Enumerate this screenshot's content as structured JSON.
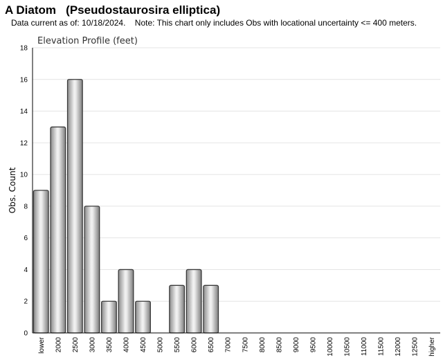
{
  "header": {
    "title": "A Diatom   (Pseudostaurosira elliptica)",
    "note": "Data current as of: 10/18/2024.    Note: This chart only includes Obs with locational uncertainty <= 400 meters."
  },
  "chart_data": {
    "type": "bar",
    "title": "Elevation Profile (feet)",
    "xlabel": "",
    "ylabel": "Obs. Count",
    "ylim": [
      0,
      18
    ],
    "yticks": [
      0,
      2,
      4,
      6,
      8,
      10,
      12,
      14,
      16,
      18
    ],
    "grid": true,
    "categories": [
      "lower",
      "2000",
      "2500",
      "3000",
      "3500",
      "4000",
      "4500",
      "5000",
      "5500",
      "6000",
      "6500",
      "7000",
      "7500",
      "8000",
      "8500",
      "9000",
      "9500",
      "10000",
      "10500",
      "11000",
      "11500",
      "12000",
      "12500",
      "higher"
    ],
    "values": [
      9,
      13,
      16,
      8,
      2,
      4,
      2,
      0,
      3,
      4,
      3,
      0,
      0,
      0,
      0,
      0,
      0,
      0,
      0,
      0,
      0,
      0,
      0,
      0
    ]
  }
}
